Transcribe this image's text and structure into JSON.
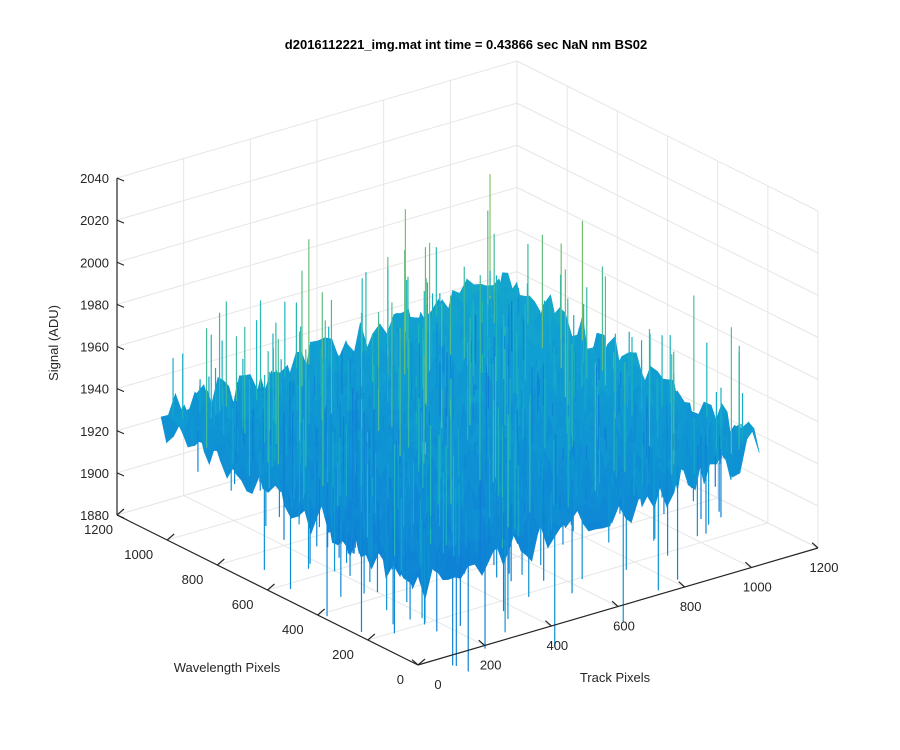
{
  "chart_data": {
    "type": "surface",
    "title": "d2016112221_img.mat int time = 0.43866 sec  NaN nm BS02",
    "xlabel": "Track Pixels",
    "ylabel": "Wavelength Pixels",
    "zlabel": "Signal (ADU)",
    "xlim": [
      0,
      1200
    ],
    "ylim": [
      0,
      1200
    ],
    "zlim": [
      1880,
      2040
    ],
    "x_ticks": [
      "0",
      "200",
      "400",
      "600",
      "800",
      "1000",
      "1200"
    ],
    "y_ticks": [
      "0",
      "200",
      "400",
      "600",
      "800",
      "1000",
      "1200"
    ],
    "z_ticks": [
      "1880",
      "1900",
      "1920",
      "1940",
      "1960",
      "1980",
      "2000",
      "2020",
      "2040"
    ],
    "x_tick_values": [
      0,
      200,
      400,
      600,
      800,
      1000,
      1200
    ],
    "y_tick_values": [
      0,
      200,
      400,
      600,
      800,
      1000,
      1200
    ],
    "z_tick_values": [
      1880,
      1900,
      1920,
      1940,
      1960,
      1980,
      2000,
      2020,
      2040
    ],
    "grid": true,
    "data_extent": {
      "x_max": 1024,
      "y_max": 1024
    },
    "baseline_signal": 1935,
    "typical_range": [
      1900,
      2030
    ],
    "colormap": "parula",
    "colors": {
      "low": "#0d8ed8",
      "mid": "#1fb3c4",
      "high": "#e6c93a",
      "axis": "#262626",
      "grid": "#e6e6e6"
    }
  }
}
